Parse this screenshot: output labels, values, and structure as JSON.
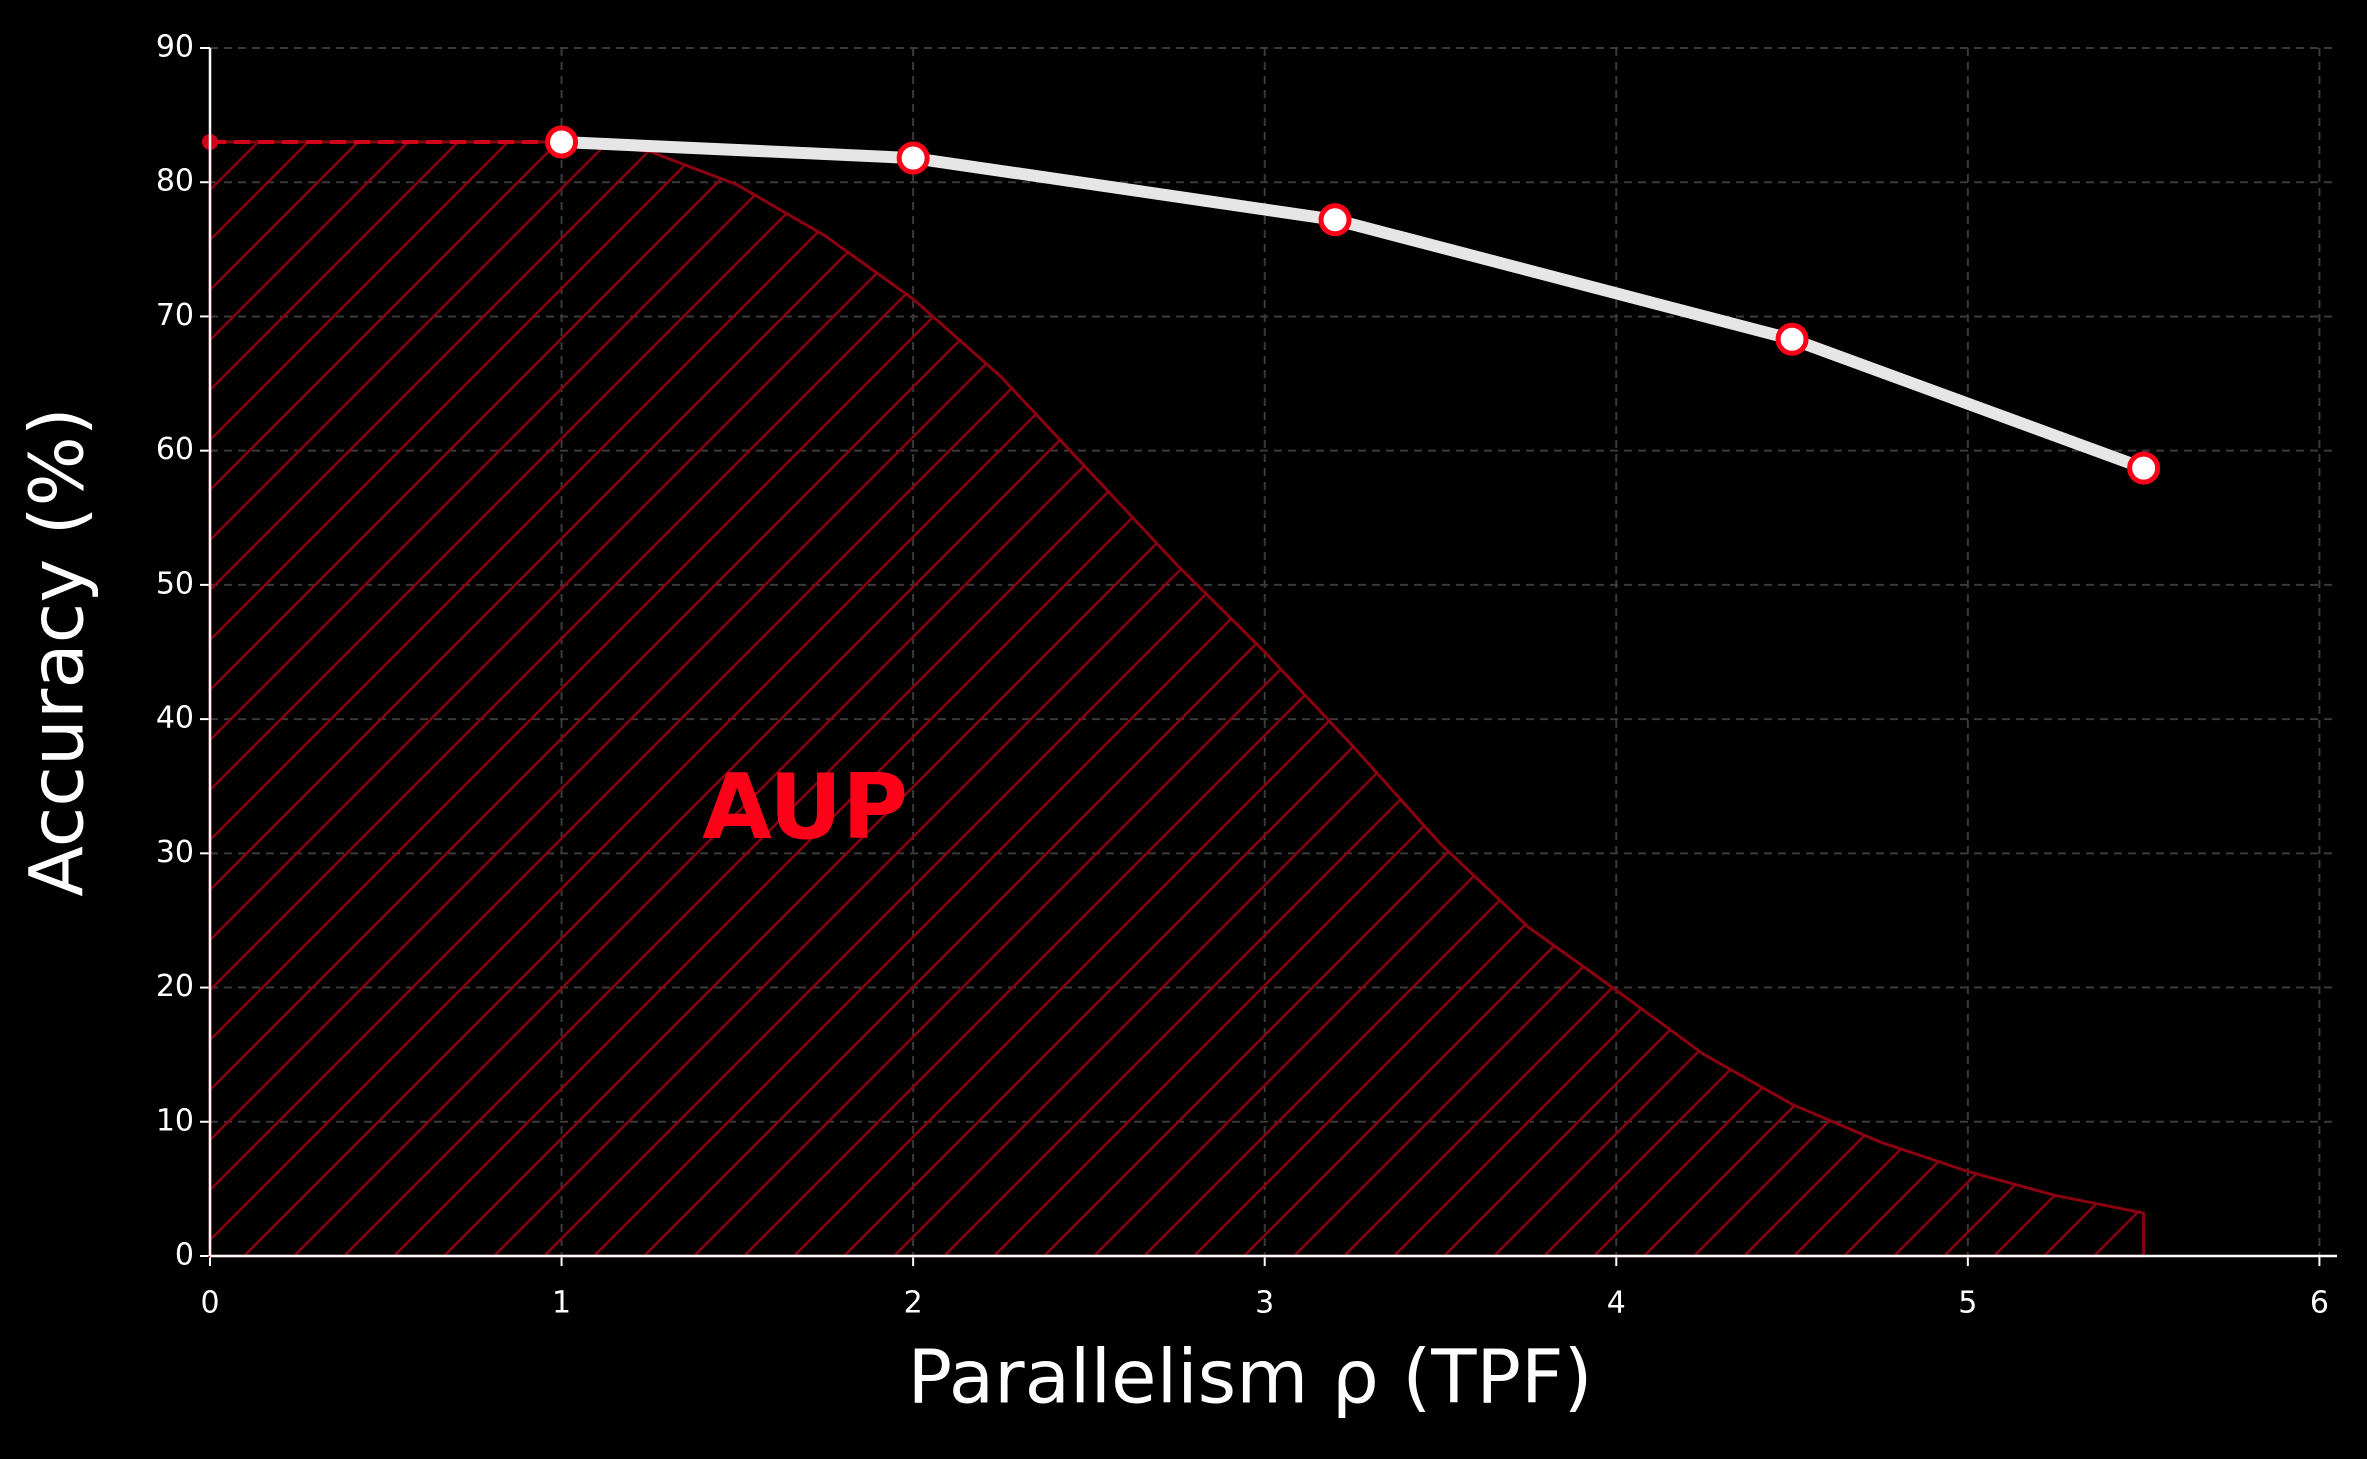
{
  "chart_data": {
    "type": "line",
    "x_label": "Parallelism ρ (TPF)",
    "y_label": "Accuracy (%)",
    "annotation": "AUP",
    "xlim": [
      0,
      6.05
    ],
    "xticks": [
      0,
      1,
      2,
      3,
      4,
      5,
      6
    ],
    "ylim": [
      0,
      90
    ],
    "yticks": [
      0,
      10,
      20,
      30,
      40,
      50,
      60,
      70,
      80,
      90
    ],
    "grid": true,
    "area": {
      "color": "#8b0010",
      "x": [
        0,
        1,
        1.25,
        1.5,
        1.75,
        2,
        2.25,
        2.5,
        2.75,
        3,
        3.25,
        3.5,
        3.75,
        4,
        4.25,
        4.5,
        4.75,
        5,
        5.25,
        5.5
      ],
      "values": [
        83,
        83,
        82.3,
        79.8,
        76,
        71.3,
        65.5,
        58.5,
        51.5,
        45,
        38,
        30.7,
        24.5,
        19.8,
        15,
        11.3,
        8.5,
        6.3,
        4.5,
        3.2
      ]
    },
    "series": [
      {
        "color": "#d3001a",
        "dashed": true,
        "x": [
          0,
          1
        ],
        "values": [
          83,
          83
        ]
      },
      {
        "color": "#e6e6e6",
        "marker_edge": "#ff0019",
        "x": [
          1,
          2,
          3.2,
          4.5,
          5.5
        ],
        "values": [
          83,
          81.8,
          77.2,
          68.3,
          58.7
        ]
      }
    ]
  }
}
